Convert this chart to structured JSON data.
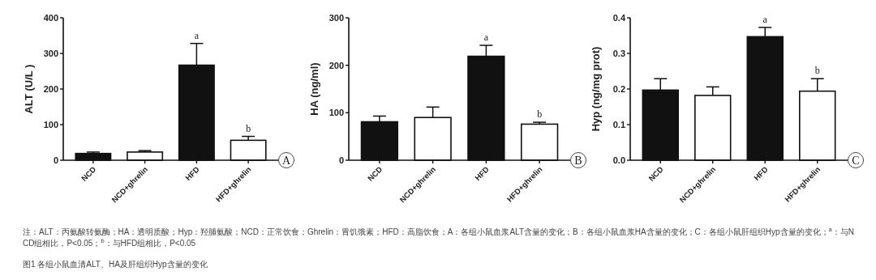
{
  "chart_data": [
    {
      "type": "bar",
      "ylabel": "ALT (U/L )",
      "categories": [
        "NCD",
        "NCD+ghrelin",
        "HFD",
        "HFD+ghrelin"
      ],
      "values": [
        19,
        23,
        267,
        56
      ],
      "errors": [
        4,
        4,
        61,
        11
      ],
      "colors": [
        "#111111",
        "#ffffff",
        "#111111",
        "#ffffff"
      ],
      "ylim": [
        0,
        400
      ],
      "yticks": [
        0,
        100,
        200,
        300,
        400
      ],
      "grid": false,
      "annotations": [
        {
          "text": "a",
          "x": "HFD",
          "y": 328
        },
        {
          "text": "b",
          "x": "HFD+ghrelin",
          "y": 67
        },
        "A",
        "注：ALT：丙氨酸转氨酶；HA：透明质酸；Hyp：羟脯氨酸；NCD：正常饮食；Ghrelin：胃饥饿素；HFD：高脂饮食；A：各组小鼠血浆ALT含量的变化；B：各组小鼠血浆HA含量的变化；C：各组小鼠肝组织Hyp含量的变化；$^{a}$：与NCD组相比，P<0.05；$^{b}$：与HFD组相比，P<0.05",
        "图1 各组小鼠血清ALT、HA及肝组织Hyp含量的变化"
      ]
    },
    {
      "type": "bar",
      "ylabel": "HA (ng/ml)",
      "categories": [
        "NCD",
        "NCD+ghrelin",
        "HFD",
        "HFD+ghrelin"
      ],
      "values": [
        81,
        90,
        219,
        76
      ],
      "errors": [
        12,
        22,
        23,
        4
      ],
      "colors": [
        "#111111",
        "#ffffff",
        "#111111",
        "#ffffff"
      ],
      "ylim": [
        0,
        300
      ],
      "yticks": [
        0,
        100,
        200,
        300
      ],
      "grid": false,
      "annotations": [
        {
          "text": "a",
          "x": "HFD",
          "y": 242
        },
        {
          "text": "b",
          "x": "HFD+ghrelin",
          "y": 80
        },
        "B"
      ]
    },
    {
      "type": "bar",
      "ylabel": "Hyp (ng/mg prot)",
      "categories": [
        "NCD",
        "NCD+ghrelin",
        "HFD",
        "HFD+ghrelin"
      ],
      "values": [
        0.197,
        0.182,
        0.347,
        0.194
      ],
      "errors": [
        0.032,
        0.024,
        0.026,
        0.035
      ],
      "colors": [
        "#111111",
        "#ffffff",
        "#111111",
        "#ffffff"
      ],
      "ylim": [
        0,
        0.4
      ],
      "yticks": [
        {
          "value": 0,
          "label": "0.0"
        },
        0.1,
        0.2,
        0.3,
        0.4
      ],
      "grid": false,
      "annotations": [
        {
          "text": "a",
          "x": "HFD",
          "y": 0.373
        },
        {
          "text": "b",
          "x": "HFD+ghrelin",
          "y": 0.229
        },
        "C"
      ]
    }
  ]
}
